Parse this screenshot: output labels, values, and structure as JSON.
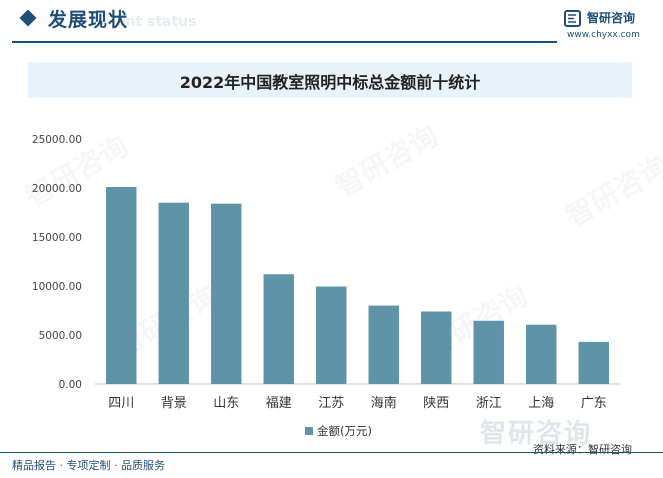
{
  "header": {
    "title": "发展现状",
    "subtitle": "ent status"
  },
  "brand": {
    "name": "智研咨询",
    "url": "www.chyxx.com",
    "watermark": "智研咨询",
    "logo_icon": "zhiyan-logo-icon"
  },
  "footer": {
    "left": "精品报告 · 专项定制 · 品质服务",
    "source": "资料来源：智研咨询"
  },
  "colors": {
    "bar": "#5f93a8",
    "brand": "#1f4e79",
    "title_band": "#e8f2fa"
  },
  "chart_data": {
    "type": "bar",
    "title": "2022年中国教室照明中标总金额前十统计",
    "categories": [
      "四川",
      "背景",
      "山东",
      "福建",
      "江苏",
      "海南",
      "陕西",
      "浙江",
      "上海",
      "广东"
    ],
    "series": [
      {
        "name": "金额(万元)",
        "values": [
          20100,
          18500,
          18400,
          11200,
          9950,
          8000,
          7400,
          6450,
          6050,
          4300
        ]
      }
    ],
    "ylim": [
      0,
      25000
    ],
    "yticks": [
      "0.00",
      "5000.00",
      "10000.00",
      "15000.00",
      "20000.00",
      "25000.00"
    ],
    "grid": false,
    "legend": "bottom"
  }
}
